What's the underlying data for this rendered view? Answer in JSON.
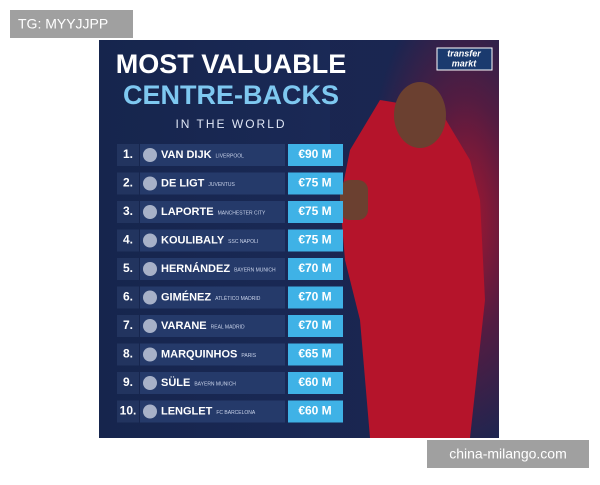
{
  "watermark_top": "TG: MYYJJPP",
  "watermark_bottom": "china-milango.com",
  "header": {
    "title_line1": "MOST VALUABLE",
    "title_line2": "CENTRE-BACKS",
    "subtitle": "IN THE WORLD",
    "logo_line1": "transfer",
    "logo_line2": "markt"
  },
  "table": {
    "rows": [
      {
        "rank": "1.",
        "name": "VAN DIJK",
        "club": "LIVERPOOL",
        "value": "€90 M"
      },
      {
        "rank": "2.",
        "name": "DE LIGT",
        "club": "JUVENTUS",
        "value": "€75 M"
      },
      {
        "rank": "3.",
        "name": "LAPORTE",
        "club": "MANCHESTER CITY",
        "value": "€75 M"
      },
      {
        "rank": "4.",
        "name": "KOULIBALY",
        "club": "SSC NAPOLI",
        "value": "€75 M"
      },
      {
        "rank": "5.",
        "name": "HERNÁNDEZ",
        "club": "BAYERN MUNICH",
        "value": "€70 M"
      },
      {
        "rank": "6.",
        "name": "GIMÉNEZ",
        "club": "ATLÉTICO MADRID",
        "value": "€70 M"
      },
      {
        "rank": "7.",
        "name": "VARANE",
        "club": "REAL MADRID",
        "value": "€70 M"
      },
      {
        "rank": "8.",
        "name": "MARQUINHOS",
        "club": "PARIS",
        "value": "€65 M"
      },
      {
        "rank": "9.",
        "name": "SÜLE",
        "club": "BAYERN MUNICH",
        "value": "€60 M"
      },
      {
        "rank": "10.",
        "name": "LENGLET",
        "club": "FC BARCELONA",
        "value": "€60 M"
      }
    ]
  }
}
